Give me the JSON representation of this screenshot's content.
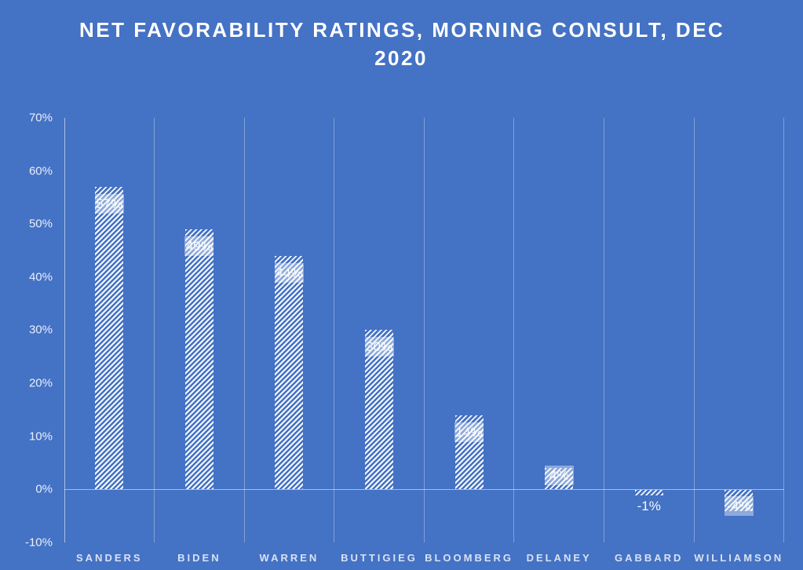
{
  "title": {
    "line1": "NET FAVORABILITY RATINGS, MORNING CONSULT, DEC",
    "line2": "2020"
  },
  "chart_data": {
    "type": "bar",
    "title": "NET FAVORABILITY RATINGS, MORNING CONSULT, DEC 2020",
    "categories": [
      "SANDERS",
      "BIDEN",
      "WARREN",
      "BUTTIGIEG",
      "BLOOMBERG",
      "DELANEY",
      "GABBARD",
      "WILLIAMSON"
    ],
    "values": [
      57,
      49,
      44,
      30,
      14,
      4,
      -1,
      -4
    ],
    "data_labels": [
      "57%",
      "49%",
      "44%",
      "30%",
      "14%",
      "4%",
      "-1%",
      "-4%"
    ],
    "y_ticks": [
      "70%",
      "60%",
      "50%",
      "40%",
      "30%",
      "20%",
      "10%",
      "0%",
      "-10%"
    ],
    "y_tick_values": [
      70,
      60,
      50,
      40,
      30,
      20,
      10,
      0,
      -10
    ],
    "ylim": [
      -10,
      70
    ],
    "xlabel": "",
    "ylabel": "",
    "legend": "none",
    "grid": "vertical category separators only, horizontal zero axis line",
    "bar_style": "white diagonal hatch pattern on blue background",
    "colors": {
      "background": "#4472C4",
      "bar_hatch": "#FFFFFF",
      "gridline": "rgba(255,255,255,0.33)",
      "axis_line": "rgba(255,255,255,0.55)",
      "title_text": "#FFFFFF",
      "tick_text": "#EAF0FA",
      "category_text": "#D9E2F3",
      "data_label_fill": "rgba(255,255,255,0.40)"
    }
  }
}
